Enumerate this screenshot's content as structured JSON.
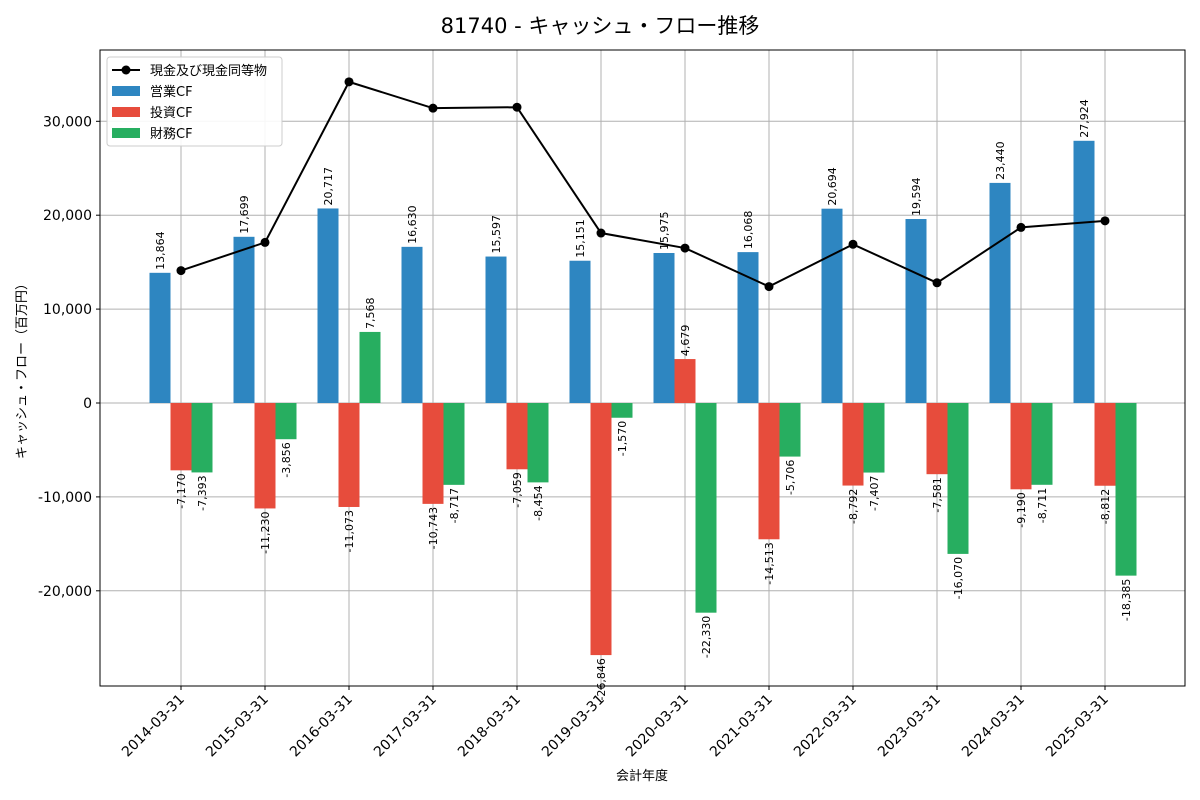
{
  "chart_data": {
    "type": "bar",
    "title": "81740 - キャッシュ・フロー推移",
    "xlabel": "会計年度",
    "ylabel": "キャッシュ・フロー（百万円）",
    "ylim": [
      -30000,
      35000
    ],
    "yticks": [
      -20000,
      -10000,
      0,
      10000,
      20000,
      30000
    ],
    "ytick_labels": [
      "-20,000",
      "-10,000",
      "0",
      "10,000",
      "20,000",
      "30,000"
    ],
    "grid": true,
    "legend_position": "top-left",
    "categories": [
      "2014-03-31",
      "2015-03-31",
      "2016-03-31",
      "2017-03-31",
      "2018-03-31",
      "2019-03-31",
      "2020-03-31",
      "2021-03-31",
      "2022-03-31",
      "2023-03-31",
      "2024-03-31",
      "2025-03-31"
    ],
    "series": [
      {
        "name": "営業CF",
        "kind": "bar",
        "color": "#2e86c1",
        "values": [
          13864,
          17699,
          20717,
          16630,
          15597,
          15151,
          15975,
          16068,
          20694,
          19594,
          23440,
          27924
        ],
        "labels": [
          "13,864",
          "17,699",
          "20,717",
          "16,630",
          "15,597",
          "15,151",
          "15,975",
          "16,068",
          "20,694",
          "19,594",
          "23,440",
          "27,924"
        ]
      },
      {
        "name": "投資CF",
        "kind": "bar",
        "color": "#e74c3c",
        "values": [
          -7170,
          -11230,
          -11073,
          -10743,
          -7059,
          -26846,
          4679,
          -14513,
          -8792,
          -7581,
          -9190,
          -8812
        ],
        "labels": [
          "-7,170",
          "-11,230",
          "-11,073",
          "-10,743",
          "-7,059",
          "-26,846",
          "4,679",
          "-14,513",
          "-8,792",
          "-7,581",
          "-9,190",
          "-8,812"
        ]
      },
      {
        "name": "財務CF",
        "kind": "bar",
        "color": "#27ae60",
        "values": [
          -7393,
          -3856,
          7568,
          -8717,
          -8454,
          -1570,
          -22330,
          -5706,
          -7407,
          -16070,
          -8711,
          -18385
        ],
        "labels": [
          "-7,393",
          "-3,856",
          "7,568",
          "-8,717",
          "-8,454",
          "-1,570",
          "-22,330",
          "-5,706",
          "-7,407",
          "-16,070",
          "-8,711",
          "-18,385"
        ]
      },
      {
        "name": "現金及び現金同等物",
        "kind": "line",
        "color": "#000000",
        "values": [
          14100,
          17100,
          34200,
          31400,
          31500,
          18100,
          16500,
          12400,
          16900,
          12800,
          18700,
          19400
        ]
      }
    ]
  }
}
